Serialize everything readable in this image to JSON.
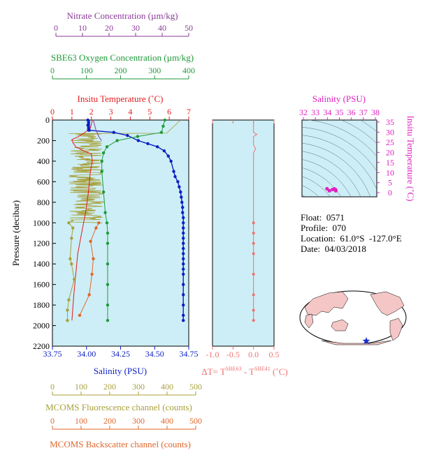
{
  "colors": {
    "plot_bg": "#cdeef6",
    "temperature": "#e41a1c",
    "salinity": "#0a1fc4",
    "oxygen": "#1f9a3a",
    "nitrate": "#8b3a9a",
    "fluorescence": "#a8a03a",
    "backscatter": "#e0662a",
    "delta_t": "#f07070",
    "ts_magenta": "#e020c0",
    "map_land": "#f4c6c6",
    "map_ocean": "#ffffff"
  },
  "info": {
    "float": "Float:  0571",
    "profile": "Profile:  070",
    "location": "Location:  61.0°S  -127.0°E",
    "date": "Date:  04/03/2018"
  },
  "chart_data": [
    {
      "type": "line",
      "name": "main-profile",
      "ylabel": "Pressure (decibar)",
      "y_ticks": [
        0,
        200,
        400,
        600,
        800,
        1000,
        1200,
        1400,
        1600,
        1800,
        2000,
        2200
      ],
      "ylim": [
        0,
        2200
      ],
      "axes": {
        "temperature": {
          "label": "Insitu Temperature (˚C)",
          "ticks": [
            "0",
            "1",
            "2",
            "3",
            "4",
            "5",
            "6",
            "7"
          ],
          "lim": [
            0,
            7
          ]
        },
        "salinity": {
          "label": "Salinity (PSU)",
          "ticks": [
            "33.75",
            "34.00",
            "34.25",
            "34.50",
            "34.75"
          ],
          "lim": [
            33.75,
            34.75
          ]
        },
        "oxygen": {
          "label": "SBE63 Oxygen Concentration (µm/kg)",
          "ticks": [
            "0",
            "100",
            "200",
            "300",
            "400"
          ],
          "lim": [
            0,
            400
          ]
        },
        "nitrate": {
          "label": "Nitrate Concentration (µm/kg)",
          "ticks": [
            "0",
            "10",
            "20",
            "30",
            "40",
            "50"
          ],
          "lim": [
            0,
            50
          ]
        },
        "fluorescence": {
          "label": "MCOMS Fluorescence channel (counts)",
          "ticks": [
            "0",
            "100",
            "200",
            "300",
            "400",
            "500"
          ],
          "lim": [
            0,
            500
          ]
        },
        "backscatter": {
          "label": "MCOMS Backscatter channel (counts)",
          "ticks": [
            "0",
            "100",
            "200",
            "300",
            "400",
            "500"
          ],
          "lim": [
            0,
            500
          ]
        }
      },
      "series": [
        {
          "name": "temperature",
          "x": [
            2.05,
            2.0,
            1.95,
            1.6,
            1.35,
            1.0,
            1.05,
            1.2,
            1.6,
            2.0,
            2.05,
            1.95,
            1.9,
            1.85,
            1.78,
            1.7,
            1.6,
            1.5,
            1.4,
            1.3,
            1.2,
            1.1,
            1.0
          ],
          "y": [
            0,
            40,
            80,
            130,
            160,
            190,
            220,
            260,
            300,
            330,
            400,
            500,
            600,
            700,
            800,
            900,
            1000,
            1100,
            1200,
            1300,
            1500,
            1700,
            1950
          ]
        },
        {
          "name": "salinity",
          "x": [
            34.01,
            34.01,
            34.02,
            34.2,
            34.3,
            34.38,
            34.45,
            34.52,
            34.57,
            34.6,
            34.62,
            34.64,
            34.65,
            34.67,
            34.68,
            34.69,
            34.695,
            34.7,
            34.705,
            34.705,
            34.71,
            34.71,
            34.71,
            34.71,
            34.71,
            34.71,
            34.71,
            34.71,
            34.71,
            34.71,
            34.71,
            34.71,
            34.71,
            34.71,
            34.71,
            34.71,
            34.71
          ],
          "y": [
            0,
            50,
            100,
            120,
            150,
            200,
            230,
            260,
            300,
            350,
            400,
            500,
            550,
            600,
            650,
            700,
            750,
            800,
            850,
            900,
            950,
            1000,
            1050,
            1100,
            1150,
            1200,
            1250,
            1300,
            1350,
            1400,
            1450,
            1500,
            1600,
            1700,
            1800,
            1900,
            1950
          ]
        },
        {
          "name": "oxygen",
          "x": [
            330,
            325,
            320,
            250,
            190,
            160,
            150,
            145,
            145,
            150,
            155,
            160,
            162,
            162,
            162,
            162,
            162,
            162
          ],
          "y": [
            0,
            60,
            120,
            160,
            200,
            260,
            320,
            400,
            500,
            700,
            900,
            1000,
            1100,
            1200,
            1400,
            1600,
            1800,
            1950
          ]
        },
        {
          "name": "nitrate",
          "x": [
            15,
            15.5,
            16,
            16.5,
            17,
            18
          ],
          "y": [
            0,
            50,
            100,
            130,
            160,
            200
          ]
        },
        {
          "name": "fluorescence",
          "x": [
            60,
            75,
            70,
            65,
            70,
            80,
            60,
            55,
            55
          ],
          "y": [
            1000,
            1050,
            1150,
            1350,
            1400,
            1550,
            1750,
            1850,
            1950
          ]
        },
        {
          "name": "backscatter",
          "x": [
            170,
            160,
            140,
            150,
            145,
            135,
            100
          ],
          "y": [
            1000,
            1050,
            1180,
            1350,
            1500,
            1700,
            1900
          ]
        }
      ]
    },
    {
      "type": "line",
      "name": "delta-t",
      "xlabel": "ΔT= T^SBE63 - T^SBE41 (˚C)",
      "ticks": [
        "-1.0",
        "-0.5",
        "0.0",
        "0.5"
      ],
      "xlim": [
        -1.0,
        0.5
      ],
      "ylim": [
        0,
        2200
      ],
      "x": [
        0.0,
        0.0,
        0.08,
        0.0,
        0.0,
        0.05,
        0.0,
        0.0,
        0.0,
        0.0,
        0.0,
        0.0,
        0.0,
        0.0,
        0.0
      ],
      "y": [
        0,
        120,
        140,
        160,
        240,
        280,
        320,
        1000,
        1100,
        1200,
        1300,
        1500,
        1700,
        1850,
        1950
      ]
    },
    {
      "type": "scatter",
      "name": "ts-diagram",
      "xlabel": "Salinity (PSU)",
      "ylabel": "Insitu Temperature (˚C)",
      "x_ticks": [
        "32",
        "33",
        "34",
        "35",
        "36",
        "37",
        "38"
      ],
      "xlim": [
        32,
        38
      ],
      "y_ticks": [
        "0",
        "5",
        "10",
        "15",
        "20",
        "25",
        "30",
        "35"
      ],
      "ylim": [
        -2,
        36
      ],
      "x": [
        34.01,
        34.2,
        34.45,
        34.6,
        34.69,
        34.71,
        34.71
      ],
      "y": [
        2.0,
        1.0,
        1.6,
        1.9,
        1.6,
        1.2,
        1.0
      ]
    }
  ]
}
